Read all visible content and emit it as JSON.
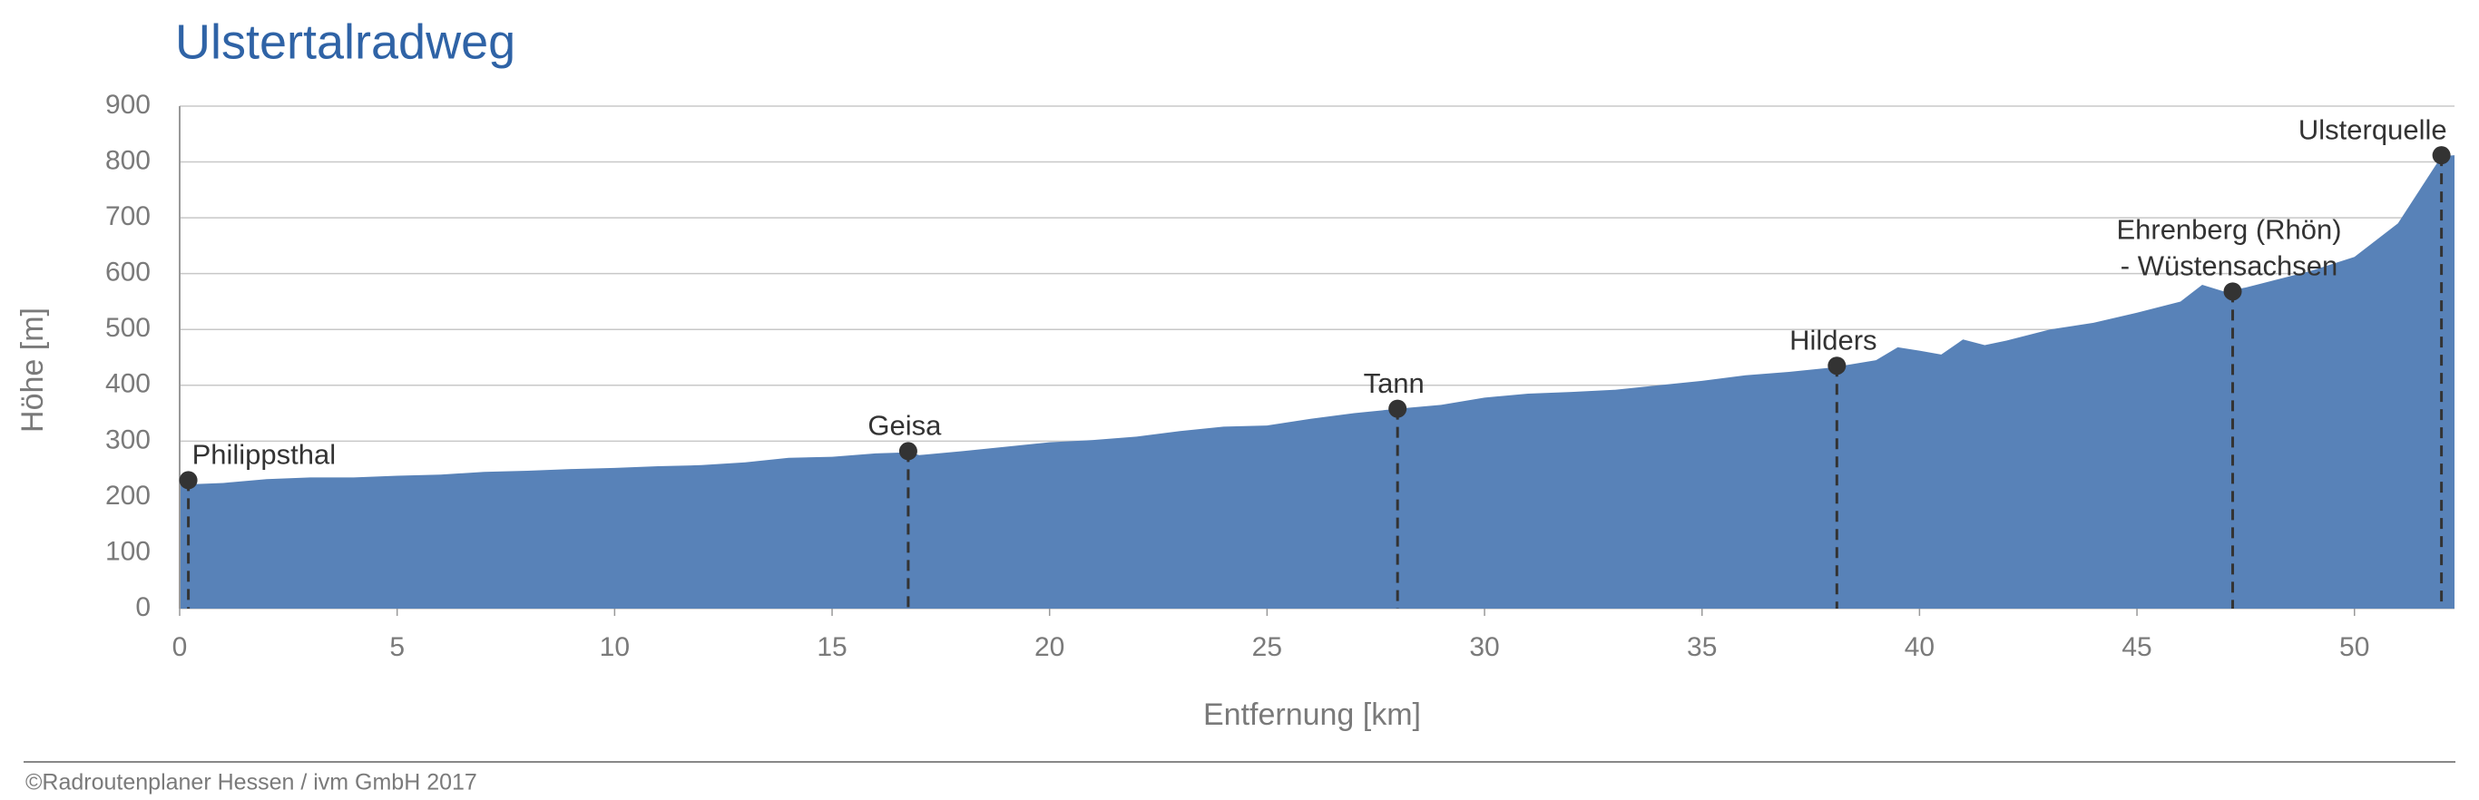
{
  "chart_data": {
    "type": "area",
    "title": "Ulstertalradweg",
    "xlabel": "Entfernung [km]",
    "ylabel": "Höhe [m]",
    "footer": "©Radroutenplaner Hessen / ivm GmbH 2017",
    "color": "#5882b8",
    "grid": true,
    "xlim": [
      0,
      52.3
    ],
    "ylim": [
      0,
      900
    ],
    "xticks": [
      0,
      5,
      10,
      15,
      20,
      25,
      30,
      35,
      40,
      45,
      50
    ],
    "yticks": [
      0,
      100,
      200,
      300,
      400,
      500,
      600,
      700,
      800,
      900
    ],
    "x": [
      0,
      1,
      2,
      3,
      4,
      5,
      6,
      7,
      8,
      9,
      10,
      11,
      12,
      13,
      14,
      15,
      16,
      16.8,
      17,
      18,
      19,
      20,
      21,
      22,
      23,
      24,
      25,
      26,
      27,
      28,
      29,
      30,
      31,
      32,
      33,
      34,
      35,
      36,
      37,
      38,
      39,
      39.5,
      40,
      40.5,
      41,
      41.5,
      42,
      43,
      44,
      45,
      46,
      46.5,
      47,
      47.5,
      48,
      49,
      50,
      51,
      52,
      52.3
    ],
    "values": [
      222,
      225,
      232,
      235,
      235,
      238,
      240,
      245,
      247,
      250,
      252,
      255,
      257,
      262,
      270,
      272,
      278,
      280,
      275,
      282,
      290,
      298,
      302,
      308,
      318,
      326,
      328,
      340,
      350,
      358,
      365,
      378,
      385,
      388,
      392,
      400,
      408,
      418,
      424,
      432,
      445,
      468,
      462,
      455,
      482,
      472,
      480,
      500,
      512,
      530,
      550,
      580,
      568,
      575,
      585,
      605,
      630,
      690,
      810,
      812
    ],
    "annotations": [
      {
        "label": [
          "Philippsthal"
        ],
        "x": 0.2,
        "y": 230
      },
      {
        "label": [
          "Geisa"
        ],
        "x": 16.75,
        "y": 282
      },
      {
        "label": [
          "Tann"
        ],
        "x": 28.0,
        "y": 358
      },
      {
        "label": [
          "Hilders"
        ],
        "x": 38.1,
        "y": 435
      },
      {
        "label": [
          "Ehrenberg (Rhön)",
          "- Wüstensachsen"
        ],
        "x": 47.2,
        "y": 568
      },
      {
        "label": [
          "Ulsterquelle"
        ],
        "x": 52.0,
        "y": 812
      }
    ]
  }
}
